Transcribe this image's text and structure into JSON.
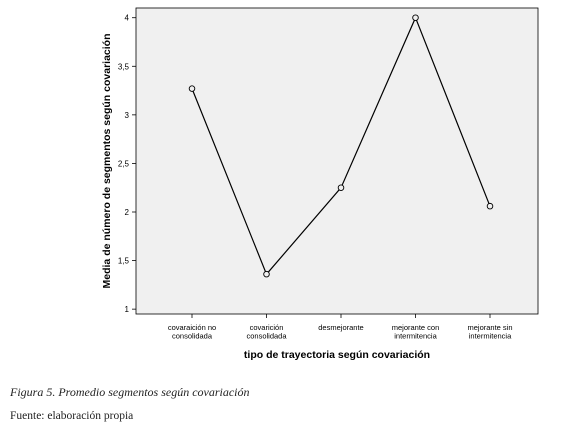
{
  "chart_data": {
    "type": "line",
    "categories": [
      [
        "covaraición no",
        "consolidada"
      ],
      [
        "covarición",
        "consolidada"
      ],
      [
        "desmejorante"
      ],
      [
        "mejorante con",
        "intermitencia"
      ],
      [
        "mejorante sin",
        "intermitencia"
      ]
    ],
    "values": [
      3.27,
      1.36,
      2.25,
      4.0,
      2.06
    ],
    "xlabel": "tipo de trayectoria según covariación",
    "ylabel": "Media de número de segmentos según covariación",
    "ylim": [
      0.95,
      4.1
    ],
    "yticks": [
      1,
      1.5,
      2,
      2.5,
      3,
      3.5,
      4
    ],
    "ytick_labels": [
      "1",
      "1,5",
      "2",
      "2,5",
      "3",
      "3,5",
      "4"
    ],
    "colors": {
      "plot_background": "#f0f0f0",
      "line": "#000000"
    },
    "grid": false,
    "legend": "none"
  },
  "caption": "Figura 5. Promedio segmentos según covariación",
  "source": "Fuente: elaboración propia"
}
